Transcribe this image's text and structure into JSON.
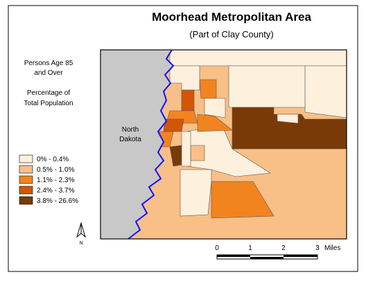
{
  "title": "Moorhead Metropolitan Area",
  "subtitle": "(Part of Clay County)",
  "legend": {
    "title_lines": [
      "Persons Age 85",
      "and Over",
      "Percentage of",
      "Total Population"
    ],
    "classes": [
      {
        "label": "0% - 0.4%",
        "color": "#fdf0dc"
      },
      {
        "label": "0.5% - 1.0%",
        "color": "#f8bf86"
      },
      {
        "label": "1.1% - 2.3%",
        "color": "#f2841f"
      },
      {
        "label": "2.4% - 3.7%",
        "color": "#d15608"
      },
      {
        "label": "3.8% - 26.6%",
        "color": "#7a3a08"
      }
    ]
  },
  "region_label": [
    "North",
    "Dakota"
  ],
  "scale": {
    "ticks": [
      "0",
      "1",
      "2",
      "3"
    ],
    "unit": "Miles"
  },
  "north": "N"
}
